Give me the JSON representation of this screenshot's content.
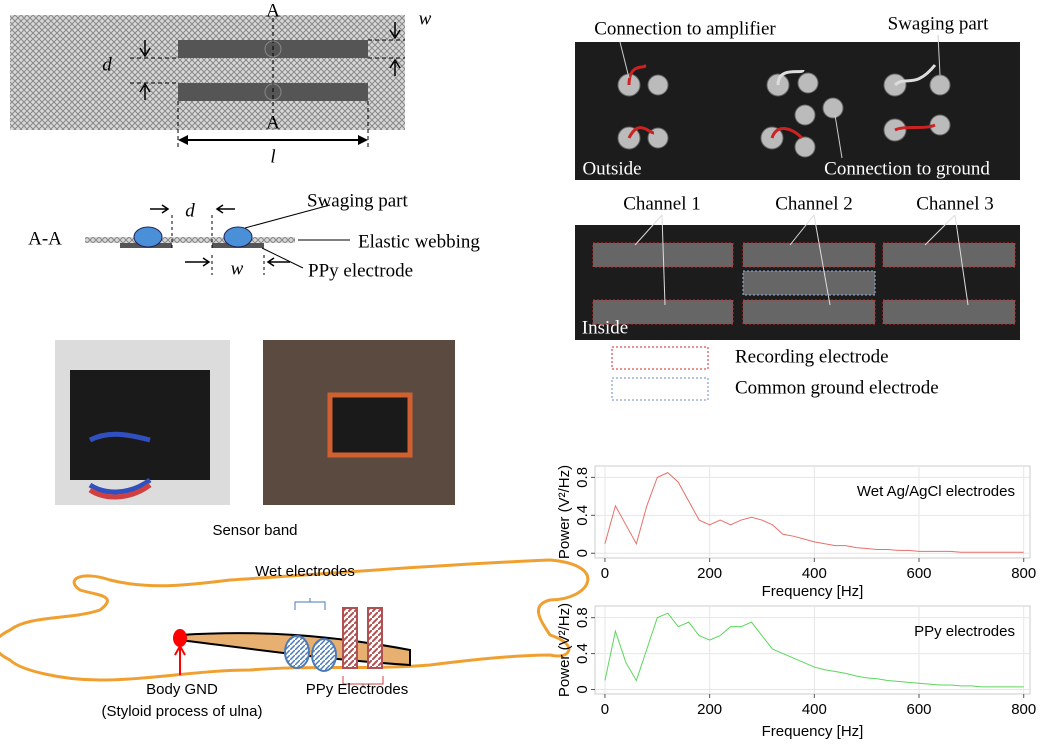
{
  "schematic_top": {
    "marker_top": "A",
    "marker_bottom": "A",
    "d": "d",
    "w": "w",
    "l": "l"
  },
  "cross_section": {
    "label": "A-A",
    "d": "d",
    "w": "w",
    "swaging": "Swaging part",
    "webbing": "Elastic webbing",
    "electrode": "PPy electrode"
  },
  "photo_outside": {
    "amplifier": "Connection  to amplifier",
    "swaging": "Swaging part",
    "outside": "Outside",
    "ground": "Connection  to ground"
  },
  "photo_inside": {
    "channels": [
      "Channel  1",
      "Channel  2",
      "Channel  3"
    ],
    "inside": "Inside"
  },
  "electrode_legend": {
    "recording": "Recording  electrode",
    "ground": "Common  ground  electrode"
  },
  "sensor_band": {
    "caption": "Sensor band"
  },
  "arm": {
    "wet": "Wet electrodes",
    "gnd": "Body GND",
    "gnd_note": "(Styloid process of ulna)",
    "ppy": "PPy Electrodes"
  },
  "chart_data": [
    {
      "type": "line",
      "annotation": "Wet Ag/AgCl electrodes",
      "xlabel": "Frequency [Hz]",
      "ylabel": "Power (V²/Hz)",
      "x": [
        0,
        20,
        40,
        60,
        80,
        100,
        120,
        140,
        160,
        180,
        200,
        220,
        240,
        260,
        280,
        300,
        320,
        340,
        360,
        380,
        400,
        420,
        440,
        460,
        480,
        500,
        520,
        540,
        560,
        580,
        600,
        620,
        640,
        660,
        680,
        700,
        720,
        740,
        760,
        780,
        800
      ],
      "series": [
        {
          "name": "Wet Ag/AgCl electrodes",
          "color": "#e8706a",
          "values": [
            0.1,
            0.5,
            0.3,
            0.1,
            0.5,
            0.8,
            0.85,
            0.75,
            0.55,
            0.35,
            0.3,
            0.35,
            0.3,
            0.35,
            0.38,
            0.35,
            0.3,
            0.2,
            0.18,
            0.15,
            0.12,
            0.1,
            0.08,
            0.08,
            0.06,
            0.05,
            0.04,
            0.04,
            0.03,
            0.03,
            0.02,
            0.02,
            0.02,
            0.02,
            0.01,
            0.01,
            0.01,
            0.01,
            0.01,
            0.01,
            0.01
          ]
        }
      ],
      "xlim": [
        -19,
        812
      ],
      "ylim": [
        -0.05,
        0.92
      ],
      "xticks": [
        0,
        200,
        400,
        600,
        800
      ],
      "yticks": [
        0,
        0.4,
        0.8
      ],
      "grid": true
    },
    {
      "type": "line",
      "annotation": "PPy electrodes",
      "xlabel": "Frequency [Hz]",
      "ylabel": "Power (V²/Hz)",
      "x": [
        0,
        20,
        40,
        60,
        80,
        100,
        120,
        140,
        160,
        180,
        200,
        220,
        240,
        260,
        280,
        300,
        320,
        340,
        360,
        380,
        400,
        420,
        440,
        460,
        480,
        500,
        520,
        540,
        560,
        580,
        600,
        620,
        640,
        660,
        680,
        700,
        720,
        740,
        760,
        780,
        800
      ],
      "series": [
        {
          "name": "PPy electrodes",
          "color": "#5cd65c",
          "values": [
            0.1,
            0.65,
            0.3,
            0.1,
            0.45,
            0.8,
            0.85,
            0.7,
            0.75,
            0.6,
            0.55,
            0.6,
            0.7,
            0.7,
            0.75,
            0.6,
            0.45,
            0.4,
            0.35,
            0.3,
            0.25,
            0.22,
            0.2,
            0.18,
            0.15,
            0.13,
            0.12,
            0.1,
            0.09,
            0.08,
            0.07,
            0.06,
            0.05,
            0.05,
            0.04,
            0.04,
            0.03,
            0.03,
            0.03,
            0.03,
            0.03
          ]
        }
      ],
      "xlim": [
        -19,
        812
      ],
      "ylim": [
        -0.05,
        0.93
      ],
      "xticks": [
        0,
        200,
        400,
        600,
        800
      ],
      "yticks": [
        0,
        0.4,
        0.8
      ],
      "grid": true
    }
  ]
}
